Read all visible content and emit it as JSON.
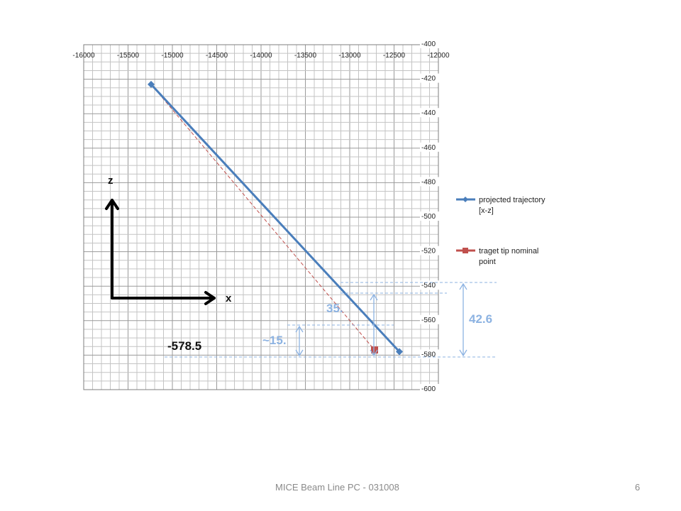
{
  "chart_data": {
    "type": "line",
    "x_ticks": [
      "-16000",
      "-15500",
      "-15000",
      "-14500",
      "-14000",
      "-13500",
      "-13000",
      "-12500",
      "-12000"
    ],
    "y_ticks": [
      "-400",
      "-420",
      "-440",
      "-460",
      "-480",
      "-500",
      "-520",
      "-540",
      "-560",
      "-580",
      "-600"
    ],
    "xlim": [
      -16000,
      -12000
    ],
    "ylim": [
      -600,
      -400
    ],
    "x_axis_position": "top",
    "y_axis_position": "right",
    "grid": true,
    "legend_placement": "right",
    "series": [
      {
        "name": "projected trajectory [x-z]",
        "name_lines": [
          "projected trajectory",
          "[x-z]"
        ],
        "color": "#4a7ebb",
        "marker": "diamond",
        "x": [
          -15240,
          -12440
        ],
        "y": [
          -423,
          -578
        ]
      },
      {
        "name": "traget tip nominal point",
        "name_lines": [
          "traget tip nominal",
          "point"
        ],
        "color": "#c0504d",
        "marker": "square",
        "x": [
          -12720
        ],
        "y": [
          -577
        ]
      }
    ],
    "reference_line": {
      "color": "#c0504d",
      "style": "dashed",
      "x": [
        -15240,
        -12720
      ],
      "y": [
        -423,
        -577
      ]
    }
  },
  "annotations": {
    "value_left": "-578.5",
    "dim_35": "35.",
    "dim_15": "~15.",
    "dim_42": "42.6",
    "axis_z": "z",
    "axis_x": "x",
    "annotation_color": "#8db3e2"
  },
  "footer": {
    "text": "MICE Beam Line PC - 031008",
    "page": "6"
  }
}
